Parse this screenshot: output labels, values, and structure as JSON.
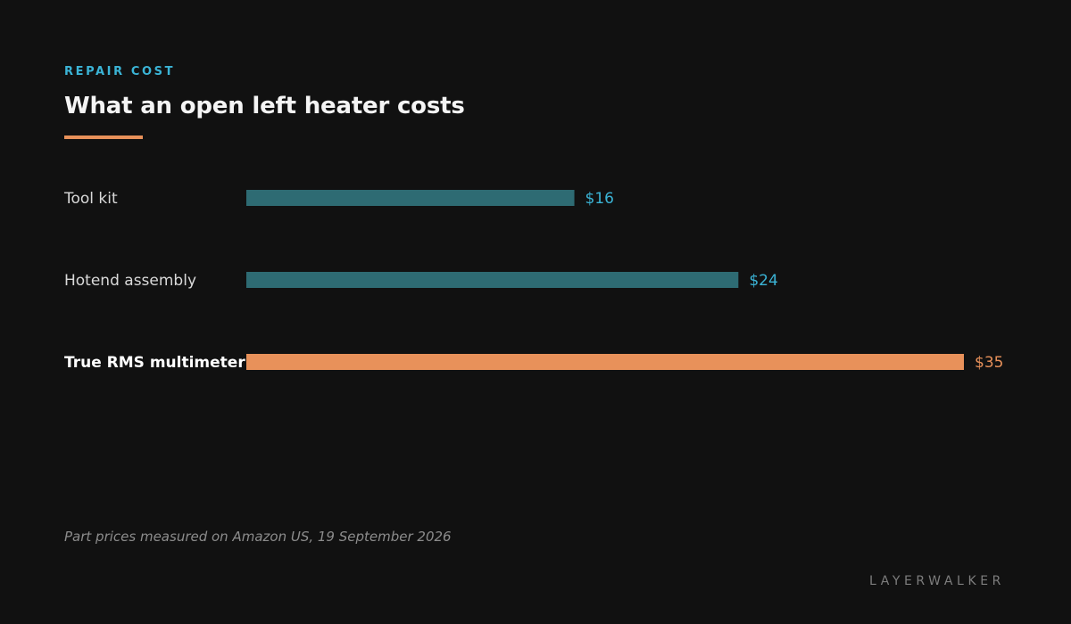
{
  "header": {
    "eyebrow": "REPAIR COST",
    "title": "What an open left heater costs"
  },
  "chart_data": {
    "type": "bar",
    "orientation": "horizontal",
    "title": "What an open left heater costs",
    "xlabel": "",
    "ylabel": "",
    "categories": [
      "Tool kit",
      "Hotend assembly",
      "True RMS multimeter"
    ],
    "values": [
      16,
      24,
      35
    ],
    "value_labels": [
      "$16",
      "$24",
      "$35"
    ],
    "highlight": "True RMS multimeter",
    "xlim": [
      0,
      35
    ],
    "grid": false,
    "colors": {
      "default_bar": "#2e6b73",
      "highlight_bar": "#e8915a",
      "default_label": "#3bb4d6",
      "highlight_label": "#e8915a",
      "category_text": "#d9d9d9",
      "highlight_category_text": "#ffffff"
    }
  },
  "footer": {
    "note": "Part prices measured on Amazon US, 19 September 2026",
    "brand": "LAYERWALKER"
  }
}
